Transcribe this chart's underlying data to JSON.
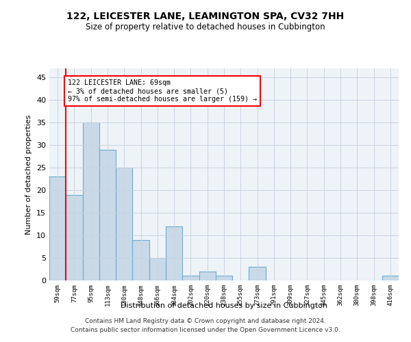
{
  "title": "122, LEICESTER LANE, LEAMINGTON SPA, CV32 7HH",
  "subtitle": "Size of property relative to detached houses in Cubbington",
  "xlabel": "Distribution of detached houses by size in Cubbington",
  "ylabel": "Number of detached properties",
  "categories": [
    "59sqm",
    "77sqm",
    "95sqm",
    "113sqm",
    "130sqm",
    "148sqm",
    "166sqm",
    "184sqm",
    "202sqm",
    "220sqm",
    "238sqm",
    "255sqm",
    "273sqm",
    "291sqm",
    "309sqm",
    "327sqm",
    "345sqm",
    "362sqm",
    "380sqm",
    "398sqm",
    "416sqm"
  ],
  "values": [
    23,
    19,
    35,
    29,
    25,
    9,
    5,
    12,
    1,
    2,
    1,
    0,
    3,
    0,
    0,
    0,
    0,
    0,
    0,
    0,
    1
  ],
  "bar_color": "#c9d9e8",
  "bar_edge_color": "#6aabd2",
  "annotation_line1": "122 LEICESTER LANE: 69sqm",
  "annotation_line2": "← 3% of detached houses are smaller (5)",
  "annotation_line3": "97% of semi-detached houses are larger (159) →",
  "annotation_box_color": "white",
  "annotation_box_edge_color": "red",
  "vline_color": "red",
  "ylim": [
    0,
    47
  ],
  "yticks": [
    0,
    5,
    10,
    15,
    20,
    25,
    30,
    35,
    40,
    45
  ],
  "grid_color": "#c8d4e0",
  "bg_color": "#eef3f8",
  "footer1": "Contains HM Land Registry data © Crown copyright and database right 2024.",
  "footer2": "Contains public sector information licensed under the Open Government Licence v3.0."
}
